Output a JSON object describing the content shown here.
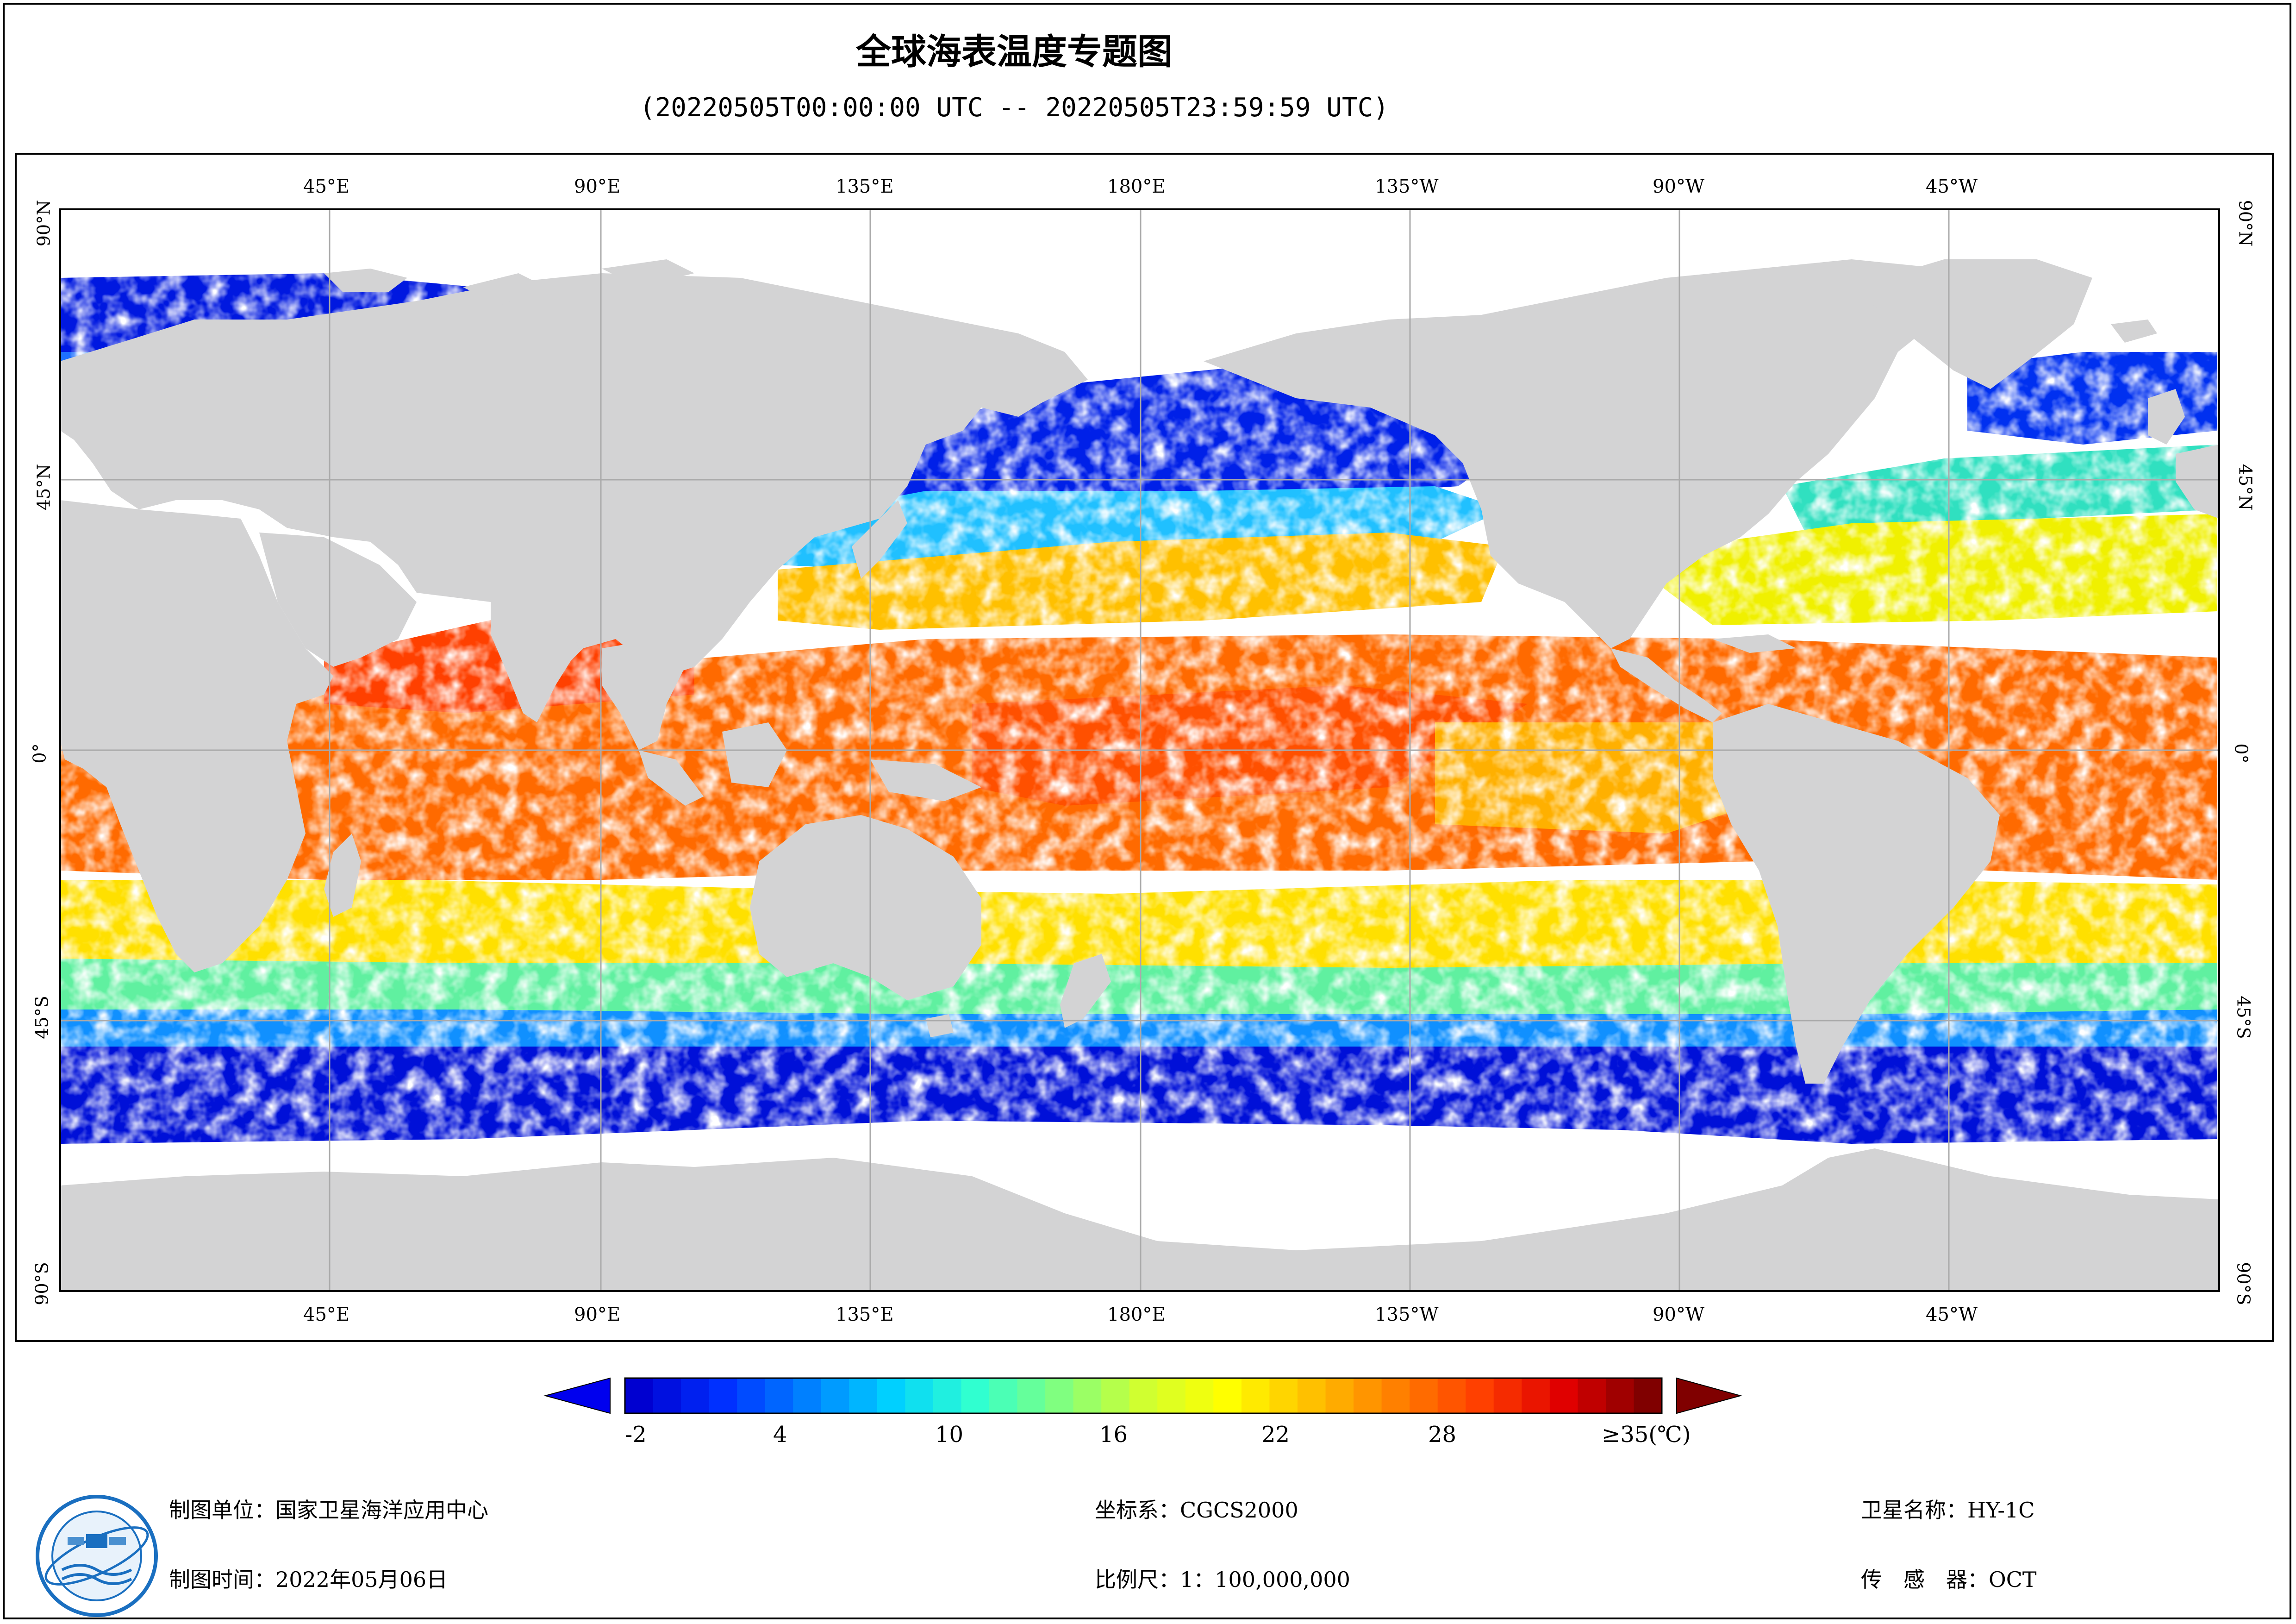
{
  "title": "全球海表温度专题图",
  "subtitle": "(20220505T00:00:00 UTC -- 20220505T23:59:59 UTC)",
  "map": {
    "top_lon_labels": [
      "45°E",
      "90°E",
      "135°E",
      "180°E",
      "135°W",
      "90°W",
      "45°W"
    ],
    "bottom_lon_labels": [
      "45°E",
      "90°E",
      "135°E",
      "180°E",
      "135°W",
      "90°W",
      "45°W"
    ],
    "lat_labels": [
      "90°N",
      "45°N",
      "0°",
      "45°S",
      "90°S"
    ],
    "colors": {
      "land": "#d3d3d4",
      "no_data": "#ffffff",
      "grid": "#aaaaaa"
    }
  },
  "legend": {
    "tick_labels": [
      "-2",
      "4",
      "10",
      "16",
      "22",
      "28",
      "≥35(℃)"
    ],
    "colormap": [
      "#0000d0",
      "#0030ff",
      "#0080ff",
      "#00d0ff",
      "#30ffd0",
      "#80ff80",
      "#d0ff30",
      "#ffff00",
      "#ffc000",
      "#ff8000",
      "#ff4000",
      "#e00000",
      "#800000"
    ]
  },
  "footer": {
    "unit_label": "制图单位：国家卫星海洋应用中心",
    "time_label": "制图时间：2022年05月06日",
    "crs_label": "坐标系：CGCS2000",
    "scale_label": "比例尺：1：100,000,000",
    "satellite_label": "卫星名称：HY-1C",
    "sensor_label": "传　感　器：OCT"
  },
  "logo": {
    "icon": "nsoas-logo-icon"
  }
}
